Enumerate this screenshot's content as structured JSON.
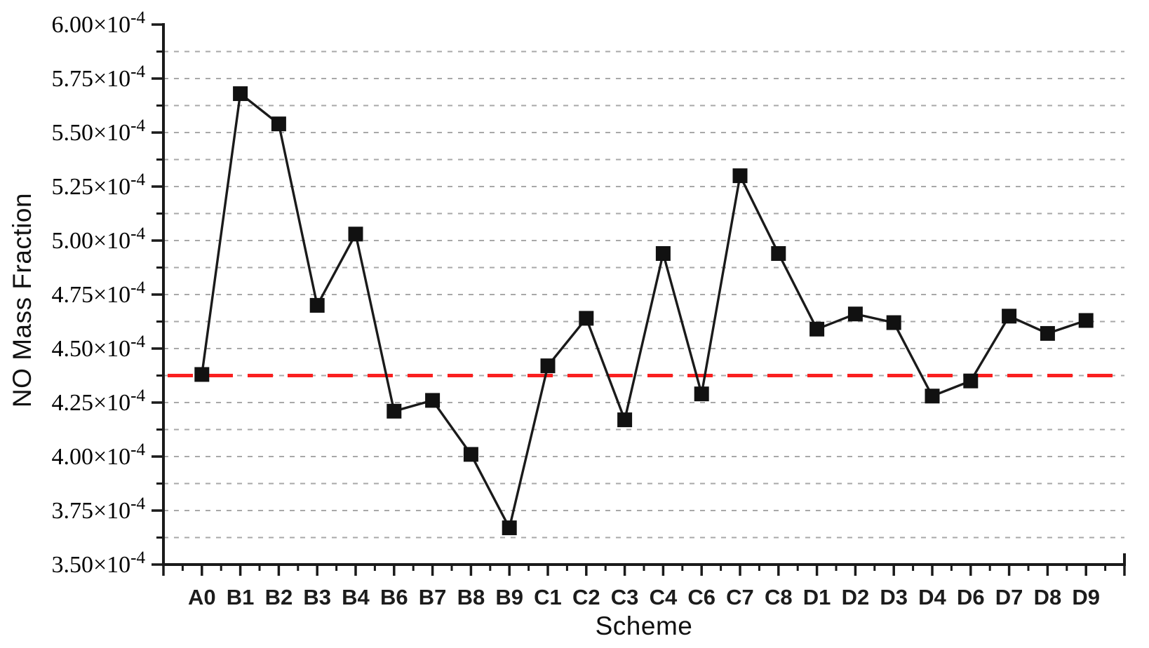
{
  "chart_data": {
    "type": "line",
    "title": "",
    "xlabel": "Scheme",
    "ylabel": "NO Mass Fraction",
    "categories": [
      "A0",
      "B1",
      "B2",
      "B3",
      "B4",
      "B6",
      "B7",
      "B8",
      "B9",
      "C1",
      "C2",
      "C3",
      "C4",
      "C6",
      "C7",
      "C8",
      "D1",
      "D2",
      "D3",
      "D4",
      "D6",
      "D7",
      "D8",
      "D9"
    ],
    "unit_scale": "1e-4",
    "series": [
      {
        "name": "NO mass fraction",
        "marker": "square",
        "color": "#1a1a1a",
        "values_e4": [
          4.38,
          5.68,
          5.54,
          4.7,
          5.03,
          4.21,
          4.26,
          4.01,
          3.67,
          4.42,
          4.64,
          4.17,
          4.94,
          4.29,
          5.3,
          4.94,
          4.59,
          4.66,
          4.62,
          4.28,
          4.35,
          4.65,
          4.57,
          4.63
        ]
      }
    ],
    "reference_line": {
      "value_e4": 4.375,
      "style": "dashed",
      "color": "#fa2020"
    },
    "y_axis": {
      "min_e4": 3.5,
      "max_e4": 6.0,
      "major_step_e4": 0.25,
      "minor_step_e4": 0.125,
      "tick_mantissas": [
        "3.50",
        "3.75",
        "4.00",
        "4.25",
        "4.50",
        "4.75",
        "5.00",
        "5.25",
        "5.50",
        "5.75",
        "6.00"
      ],
      "multiplier": "×10",
      "exponent": "-4"
    },
    "x_axis": {
      "minor_ticks_between_categories": true
    },
    "grid": {
      "horizontal": true,
      "vertical": false,
      "at_major_and_minor": true,
      "style": "dashed"
    },
    "legend": null
  },
  "styles": {
    "line_color": "#1a1a1a",
    "marker_color": "#111111",
    "grid_color": "#a8a8a8",
    "axis_color": "#1a1a1a",
    "reference_color": "#fa2020",
    "tick_label_color": "#1c1c1c",
    "background": "#ffffff"
  }
}
